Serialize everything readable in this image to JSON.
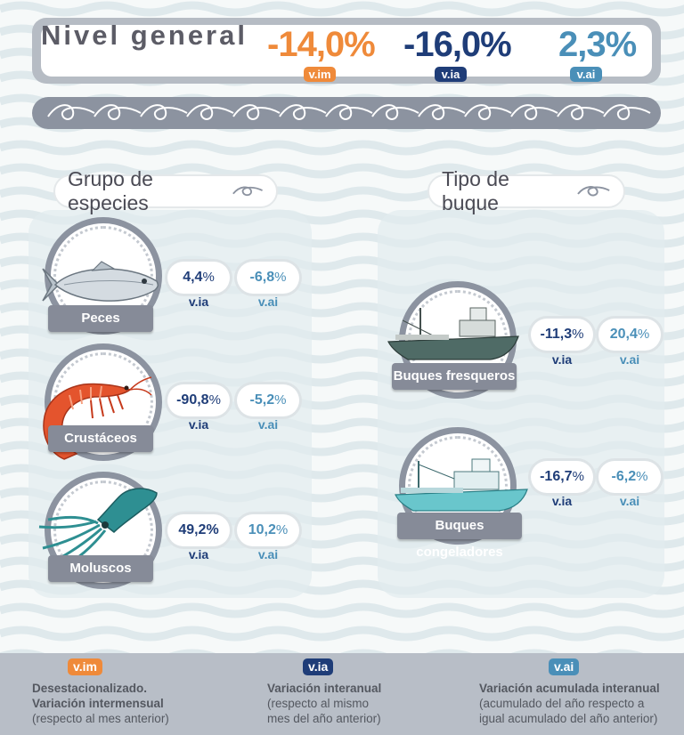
{
  "header": {
    "title": "Nivel general",
    "im": {
      "value": "-14,0%",
      "tag": "v.im"
    },
    "ia": {
      "value": "-16,0%",
      "tag": "v.ia"
    },
    "ai": {
      "value": "2,3%",
      "tag": "v.ai"
    }
  },
  "species": {
    "title": "Grupo de especies",
    "items": [
      {
        "name": "Peces",
        "ia_value": "4,4",
        "ai_value": "-6,8",
        "ia_unit": "%",
        "ai_unit": "%",
        "ia_label": "v.ia",
        "ai_label": "v.ai",
        "icon": "fish-icon"
      },
      {
        "name": "Crustáceos",
        "ia_value": "-90,8",
        "ai_value": "-5,2",
        "ia_unit": "%",
        "ai_unit": "%",
        "ia_label": "v.ia",
        "ai_label": "v.ai",
        "icon": "shrimp-icon"
      },
      {
        "name": "Moluscos",
        "ia_value": "49,2%",
        "ai_value": "10,2",
        "ia_unit": "",
        "ai_unit": "%",
        "ia_label": "v.ia",
        "ai_label": "v.ai",
        "icon": "squid-icon"
      }
    ]
  },
  "vessels": {
    "title": "Tipo de buque",
    "items": [
      {
        "name": "Buques fresqueros",
        "ia_value": "-11,3",
        "ai_value": "20,4",
        "ia_unit": "%",
        "ai_unit": "%",
        "ia_label": "v.ia",
        "ai_label": "v.ai",
        "icon": "fresh-fishing-boat-icon"
      },
      {
        "name": "Buques congeladores",
        "ia_value": "-16,7",
        "ai_value": "-6,2",
        "ia_unit": "%",
        "ai_unit": "%",
        "ia_label": "v.ia",
        "ai_label": "v.ai",
        "icon": "freezer-fishing-boat-icon"
      }
    ]
  },
  "legend": {
    "im": {
      "tag": "v.im",
      "lines": [
        "Desestacionalizado.",
        "Variación intermensual",
        "(respecto al mes anterior)"
      ]
    },
    "ia": {
      "tag": "v.ia",
      "lines": [
        "Variación interanual",
        "(respecto al mismo",
        "mes del año anterior)"
      ]
    },
    "ai": {
      "tag": "v.ai",
      "lines": [
        "Variación acumulada interanual",
        "(acumulado del año respecto a",
        "igual acumulado del año anterior)"
      ]
    }
  },
  "colors": {
    "im": "#ef8a3a",
    "ia": "#1f3d78",
    "ai": "#4a8fb8",
    "label_bar": "#868b98"
  }
}
